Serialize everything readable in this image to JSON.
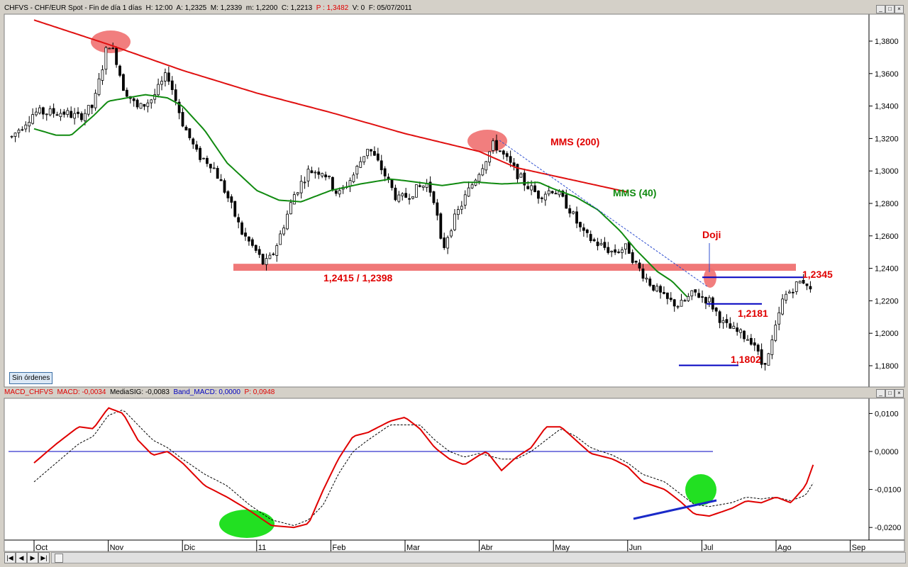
{
  "price_panel": {
    "header": {
      "symbol": "CHFVS",
      "instrument": "CHF/EUR Spot",
      "timeframe": "Fin de día 1 días",
      "h_label": "H: 12:00",
      "a_label": "A: 1,2325",
      "m_label": "M: 1,2339",
      "min_label": "m: 1,2200",
      "c_label": "C: 1,2213",
      "p_label": "P : 1,3482",
      "v_label": "V: 0",
      "f_label": "F: 05/07/2011"
    },
    "sin_ordenes": "Sin órdenes"
  },
  "macd_panel": {
    "header": {
      "name": "MACD_CHFVS",
      "macd_label": "MACD: -0,0034",
      "sig_label": "MediaSIG: -0,0083",
      "band_label": "Band_MACD: 0,0000",
      "p_label": "P: 0,0948"
    }
  },
  "window_buttons": [
    "_",
    "□",
    "×"
  ],
  "nav_buttons": [
    "|◀",
    "◀",
    "▶",
    "▶|"
  ],
  "colors": {
    "candle": "#000000",
    "mms200": "#e01010",
    "mms40": "#108a10",
    "support_band": "#f07878",
    "highlight_red": "#f07070",
    "highlight_green": "#22e022",
    "macd": "#e00000",
    "signal": "#000000",
    "zero_line": "#0000c0",
    "annotation_red": "#e00000",
    "annotation_green": "#108a10",
    "level_line": "#0000c0"
  },
  "chart_data": [
    {
      "type": "candlestick",
      "x_labels": [
        "Oct",
        "Nov",
        "Dic",
        "11",
        "Feb",
        "Mar",
        "Abr",
        "May",
        "Jun",
        "Jul",
        "Ago",
        "Sep"
      ],
      "y_ticks": [
        "1,1800",
        "1,2000",
        "1,2200",
        "1,2400",
        "1,2600",
        "1,2800",
        "1,3000",
        "1,3200",
        "1,3400",
        "1,3600",
        "1,3800"
      ],
      "ylim": [
        1.172,
        1.402
      ],
      "series": [
        {
          "name": "MMS (200)",
          "points": [
            [
              0.0,
              1.393
            ],
            [
              1.0,
              1.378
            ],
            [
              2.0,
              1.362
            ],
            [
              3.0,
              1.348
            ],
            [
              4.0,
              1.336
            ],
            [
              5.0,
              1.323
            ],
            [
              6.0,
              1.312
            ],
            [
              6.5,
              1.302
            ],
            [
              7.0,
              1.297
            ],
            [
              8.0,
              1.287
            ]
          ]
        },
        {
          "name": "MMS (40)",
          "points": [
            [
              0.0,
              1.326
            ],
            [
              0.3,
              1.322
            ],
            [
              0.5,
              1.322
            ],
            [
              0.8,
              1.334
            ],
            [
              1.0,
              1.343
            ],
            [
              1.5,
              1.347
            ],
            [
              1.8,
              1.345
            ],
            [
              2.0,
              1.34
            ],
            [
              2.3,
              1.325
            ],
            [
              2.6,
              1.305
            ],
            [
              3.0,
              1.288
            ],
            [
              3.3,
              1.282
            ],
            [
              3.6,
              1.281
            ],
            [
              4.0,
              1.288
            ],
            [
              4.4,
              1.292
            ],
            [
              4.8,
              1.295
            ],
            [
              5.0,
              1.294
            ],
            [
              5.5,
              1.291
            ],
            [
              5.8,
              1.293
            ],
            [
              6.0,
              1.293
            ],
            [
              6.3,
              1.292
            ],
            [
              6.8,
              1.293
            ],
            [
              7.0,
              1.289
            ],
            [
              7.3,
              1.284
            ],
            [
              7.6,
              1.276
            ],
            [
              7.9,
              1.263
            ],
            [
              8.1,
              1.252
            ],
            [
              8.4,
              1.238
            ],
            [
              8.6,
              1.232
            ],
            [
              8.8,
              1.2225
            ]
          ]
        },
        {
          "name": "Precio",
          "points": [
            [
              -0.3,
              1.321
            ],
            [
              0.0,
              1.336
            ],
            [
              0.4,
              1.336
            ],
            [
              0.6,
              1.333
            ],
            [
              0.8,
              1.34
            ],
            [
              1.0,
              1.38
            ],
            [
              1.1,
              1.37
            ],
            [
              1.2,
              1.352
            ],
            [
              1.4,
              1.338
            ],
            [
              1.6,
              1.345
            ],
            [
              1.8,
              1.36
            ],
            [
              2.0,
              1.33
            ],
            [
              2.2,
              1.31
            ],
            [
              2.4,
              1.304
            ],
            [
              2.6,
              1.285
            ],
            [
              2.8,
              1.262
            ],
            [
              3.0,
              1.25
            ],
            [
              3.1,
              1.242
            ],
            [
              3.2,
              1.247
            ],
            [
              3.3,
              1.258
            ],
            [
              3.5,
              1.285
            ],
            [
              3.7,
              1.3
            ],
            [
              3.9,
              1.3
            ],
            [
              4.1,
              1.285
            ],
            [
              4.3,
              1.297
            ],
            [
              4.5,
              1.315
            ],
            [
              4.7,
              1.3
            ],
            [
              4.9,
              1.282
            ],
            [
              5.0,
              1.284
            ],
            [
              5.2,
              1.29
            ],
            [
              5.3,
              1.292
            ],
            [
              5.4,
              1.282
            ],
            [
              5.5,
              1.25
            ],
            [
              5.6,
              1.264
            ],
            [
              5.8,
              1.283
            ],
            [
              6.0,
              1.3
            ],
            [
              6.2,
              1.317
            ],
            [
              6.4,
              1.305
            ],
            [
              6.6,
              1.293
            ],
            [
              6.8,
              1.285
            ],
            [
              7.0,
              1.289
            ],
            [
              7.2,
              1.278
            ],
            [
              7.4,
              1.261
            ],
            [
              7.6,
              1.255
            ],
            [
              7.8,
              1.25
            ],
            [
              8.0,
              1.253
            ],
            [
              8.1,
              1.243
            ],
            [
              8.3,
              1.231
            ],
            [
              8.5,
              1.221
            ],
            [
              8.7,
              1.217
            ],
            [
              8.9,
              1.225
            ],
            [
              9.1,
              1.22
            ],
            [
              9.3,
              1.205
            ],
            [
              9.5,
              1.2
            ],
            [
              9.7,
              1.195
            ],
            [
              9.8,
              1.181
            ],
            [
              9.9,
              1.186
            ],
            [
              10.0,
              1.204
            ],
            [
              10.1,
              1.222
            ],
            [
              10.3,
              1.231
            ],
            [
              10.4,
              1.233
            ],
            [
              10.5,
              1.221
            ]
          ]
        }
      ],
      "annotations": [
        {
          "text": "MMS (200)",
          "color": "red"
        },
        {
          "text": "MMS (40)",
          "color": "green"
        },
        {
          "text": "1,2415 / 1,2398",
          "color": "red"
        },
        {
          "text": "Doji",
          "color": "red"
        },
        {
          "text": "1,2345",
          "color": "red"
        },
        {
          "text": "1,2181",
          "color": "red"
        },
        {
          "text": "1,1802",
          "color": "red"
        }
      ],
      "support_zone": [
        1.2398,
        1.2415
      ],
      "levels": [
        1.2345,
        1.2181,
        1.1802
      ],
      "grid": false
    },
    {
      "type": "line",
      "ylim": [
        -0.0225,
        0.0125
      ],
      "y_ticks": [
        "0,0100",
        "0,0000",
        "-0,0100",
        "-0,0200"
      ],
      "series": [
        {
          "name": "MACD",
          "points": [
            [
              0.0,
              -0.003
            ],
            [
              0.3,
              0.002
            ],
            [
              0.6,
              0.0065
            ],
            [
              0.8,
              0.006
            ],
            [
              1.0,
              0.0115
            ],
            [
              1.2,
              0.01
            ],
            [
              1.4,
              0.003
            ],
            [
              1.6,
              -0.001
            ],
            [
              1.8,
              0.0
            ],
            [
              2.0,
              -0.003
            ],
            [
              2.3,
              -0.009
            ],
            [
              2.6,
              -0.012
            ],
            [
              2.9,
              -0.0155
            ],
            [
              3.2,
              -0.0195
            ],
            [
              3.5,
              -0.02
            ],
            [
              3.7,
              -0.019
            ],
            [
              3.9,
              -0.01
            ],
            [
              4.1,
              -0.002
            ],
            [
              4.3,
              0.004
            ],
            [
              4.5,
              0.005
            ],
            [
              4.8,
              0.008
            ],
            [
              5.0,
              0.009
            ],
            [
              5.2,
              0.006
            ],
            [
              5.4,
              0.001
            ],
            [
              5.6,
              -0.002
            ],
            [
              5.8,
              -0.0035
            ],
            [
              6.0,
              -0.001
            ],
            [
              6.1,
              0.0
            ],
            [
              6.3,
              -0.005
            ],
            [
              6.5,
              -0.0015
            ],
            [
              6.7,
              0.001
            ],
            [
              6.9,
              0.0065
            ],
            [
              7.1,
              0.0065
            ],
            [
              7.3,
              0.003
            ],
            [
              7.5,
              -0.0005
            ],
            [
              7.8,
              -0.002
            ],
            [
              8.0,
              -0.004
            ],
            [
              8.2,
              -0.008
            ],
            [
              8.5,
              -0.01
            ],
            [
              8.7,
              -0.013
            ],
            [
              8.9,
              -0.0165
            ],
            [
              9.1,
              -0.017
            ],
            [
              9.4,
              -0.015
            ],
            [
              9.6,
              -0.013
            ],
            [
              9.8,
              -0.0135
            ],
            [
              10.0,
              -0.012
            ],
            [
              10.2,
              -0.0135
            ],
            [
              10.4,
              -0.009
            ],
            [
              10.5,
              -0.0035
            ]
          ]
        },
        {
          "name": "MediaSIG",
          "points": [
            [
              0.0,
              -0.008
            ],
            [
              0.3,
              -0.003
            ],
            [
              0.6,
              0.002
            ],
            [
              0.8,
              0.004
            ],
            [
              1.0,
              0.0095
            ],
            [
              1.2,
              0.011
            ],
            [
              1.4,
              0.007
            ],
            [
              1.6,
              0.003
            ],
            [
              1.8,
              0.001
            ],
            [
              2.0,
              -0.002
            ],
            [
              2.3,
              -0.006
            ],
            [
              2.6,
              -0.009
            ],
            [
              2.9,
              -0.014
            ],
            [
              3.2,
              -0.018
            ],
            [
              3.5,
              -0.0195
            ],
            [
              3.7,
              -0.018
            ],
            [
              3.9,
              -0.014
            ],
            [
              4.1,
              -0.006
            ],
            [
              4.3,
              0.0
            ],
            [
              4.5,
              0.003
            ],
            [
              4.8,
              0.007
            ],
            [
              5.0,
              0.007
            ],
            [
              5.2,
              0.007
            ],
            [
              5.4,
              0.003
            ],
            [
              5.6,
              0.0
            ],
            [
              5.8,
              -0.0015
            ],
            [
              6.0,
              -0.0005
            ],
            [
              6.1,
              -0.001
            ],
            [
              6.3,
              -0.002
            ],
            [
              6.5,
              -0.002
            ],
            [
              6.7,
              0.0
            ],
            [
              6.9,
              0.003
            ],
            [
              7.1,
              0.006
            ],
            [
              7.3,
              0.004
            ],
            [
              7.5,
              0.001
            ],
            [
              7.8,
              -0.001
            ],
            [
              8.0,
              -0.003
            ],
            [
              8.2,
              -0.006
            ],
            [
              8.5,
              -0.008
            ],
            [
              8.7,
              -0.011
            ],
            [
              8.9,
              -0.014
            ],
            [
              9.1,
              -0.0145
            ],
            [
              9.4,
              -0.0135
            ],
            [
              9.6,
              -0.012
            ],
            [
              9.8,
              -0.0125
            ],
            [
              10.0,
              -0.012
            ],
            [
              10.2,
              -0.013
            ],
            [
              10.4,
              -0.0115
            ],
            [
              10.5,
              -0.0083
            ]
          ]
        },
        {
          "name": "Band_MACD",
          "points": [
            [
              -0.3,
              0.0
            ],
            [
              10.5,
              0.0
            ]
          ]
        }
      ],
      "trendline": [
        [
          9.0,
          -0.0175
        ],
        [
          10.6,
          -0.013
        ]
      ],
      "grid": false
    }
  ]
}
